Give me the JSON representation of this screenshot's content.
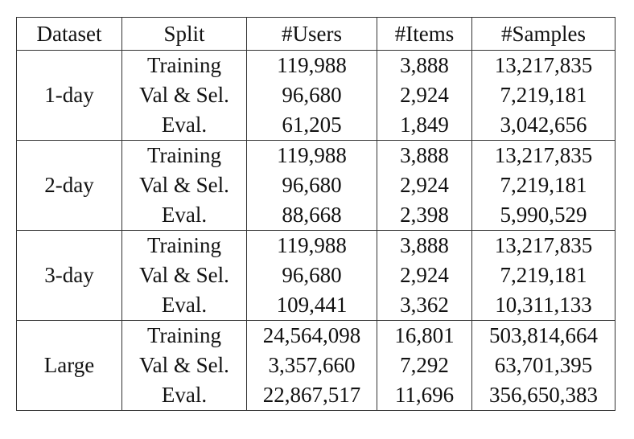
{
  "headers": {
    "dataset": "Dataset",
    "split": "Split",
    "users": "#Users",
    "items": "#Items",
    "samples": "#Samples"
  },
  "groups": [
    {
      "dataset": "1-day",
      "rows": [
        {
          "split": "Training",
          "users": "119,988",
          "items": "3,888",
          "samples": "13,217,835"
        },
        {
          "split": "Val & Sel.",
          "users": "96,680",
          "items": "2,924",
          "samples": "7,219,181"
        },
        {
          "split": "Eval.",
          "users": "61,205",
          "items": "1,849",
          "samples": "3,042,656"
        }
      ]
    },
    {
      "dataset": "2-day",
      "rows": [
        {
          "split": "Training",
          "users": "119,988",
          "items": "3,888",
          "samples": "13,217,835"
        },
        {
          "split": "Val & Sel.",
          "users": "96,680",
          "items": "2,924",
          "samples": "7,219,181"
        },
        {
          "split": "Eval.",
          "users": "88,668",
          "items": "2,398",
          "samples": "5,990,529"
        }
      ]
    },
    {
      "dataset": "3-day",
      "rows": [
        {
          "split": "Training",
          "users": "119,988",
          "items": "3,888",
          "samples": "13,217,835"
        },
        {
          "split": "Val & Sel.",
          "users": "96,680",
          "items": "2,924",
          "samples": "7,219,181"
        },
        {
          "split": "Eval.",
          "users": "109,441",
          "items": "3,362",
          "samples": "10,311,133"
        }
      ]
    },
    {
      "dataset": "Large",
      "rows": [
        {
          "split": "Training",
          "users": "24,564,098",
          "items": "16,801",
          "samples": "503,814,664"
        },
        {
          "split": "Val & Sel.",
          "users": "3,357,660",
          "items": "7,292",
          "samples": "63,701,395"
        },
        {
          "split": "Eval.",
          "users": "22,867,517",
          "items": "11,696",
          "samples": "356,650,383"
        }
      ]
    }
  ]
}
